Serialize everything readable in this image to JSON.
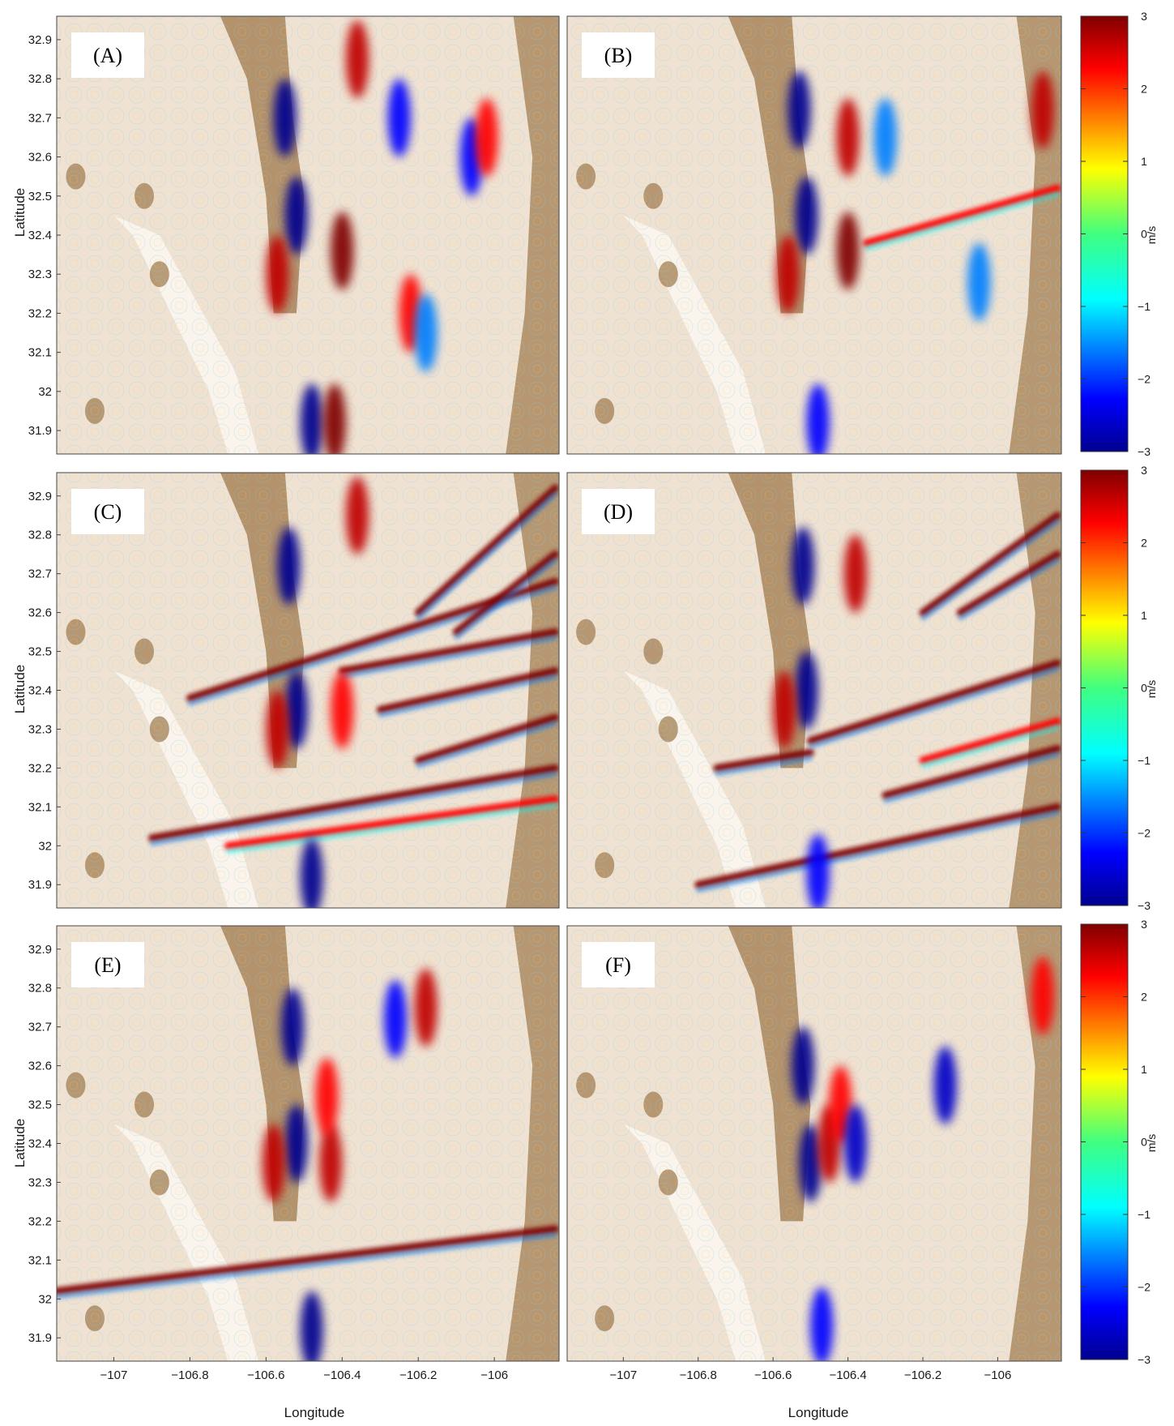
{
  "figure": {
    "xlabel": "Longitude",
    "ylabel": "Latitude",
    "colorbar": {
      "unit": "m/s",
      "min": -3,
      "max": 3,
      "ticks": [
        "3",
        "2",
        "1",
        "0",
        "−1",
        "−2",
        "−3"
      ]
    }
  },
  "chart_data": {
    "type": "heatmap",
    "xlim": [
      -107.15,
      -105.83
    ],
    "ylim": [
      31.84,
      32.96
    ],
    "x_ticks": [
      "−107",
      "−106.8",
      "−106.6",
      "−106.4",
      "−106.2",
      "−106"
    ],
    "x_tick_values": [
      -107,
      -106.8,
      -106.6,
      -106.4,
      -106.2,
      -106
    ],
    "y_ticks": [
      "32.9",
      "32.8",
      "32.7",
      "32.6",
      "32.5",
      "32.4",
      "32.3",
      "32.2",
      "32.1",
      "32",
      "31.9"
    ],
    "y_tick_values": [
      32.9,
      32.8,
      32.7,
      32.6,
      32.5,
      32.4,
      32.3,
      32.2,
      32.1,
      32.0,
      31.9
    ],
    "colormap": [
      "#00008f",
      "#0000ff",
      "#00ffff",
      "#ffff00",
      "#ff0000",
      "#800000"
    ],
    "terrain_colors": {
      "background": "#f0e2d2",
      "ridge": "#a8845a",
      "basin": "#fbf6ee"
    },
    "panels": [
      {
        "label": "(A)",
        "anomalies": [
          {
            "lon": -106.55,
            "lat": 32.7,
            "v": -3
          },
          {
            "lon": -106.52,
            "lat": 32.45,
            "v": -3
          },
          {
            "lon": -106.57,
            "lat": 32.3,
            "v": 2.5
          },
          {
            "lon": -106.4,
            "lat": 32.36,
            "v": 3
          },
          {
            "lon": -106.36,
            "lat": 32.85,
            "v": 2.5
          },
          {
            "lon": -106.25,
            "lat": 32.7,
            "v": -2
          },
          {
            "lon": -106.22,
            "lat": 32.2,
            "v": 2
          },
          {
            "lon": -106.18,
            "lat": 32.15,
            "v": -1.5
          },
          {
            "lon": -106.06,
            "lat": 32.6,
            "v": -2
          },
          {
            "lon": -106.02,
            "lat": 32.65,
            "v": 2
          },
          {
            "lon": -106.48,
            "lat": 31.92,
            "v": -3
          },
          {
            "lon": -106.42,
            "lat": 31.92,
            "v": 3
          }
        ],
        "bands": []
      },
      {
        "label": "(B)",
        "anomalies": [
          {
            "lon": -106.53,
            "lat": 32.72,
            "v": -3
          },
          {
            "lon": -106.51,
            "lat": 32.45,
            "v": -3
          },
          {
            "lon": -106.56,
            "lat": 32.3,
            "v": 2.5
          },
          {
            "lon": -106.4,
            "lat": 32.36,
            "v": 3
          },
          {
            "lon": -106.4,
            "lat": 32.65,
            "v": 2.5
          },
          {
            "lon": -106.3,
            "lat": 32.65,
            "v": -1.5
          },
          {
            "lon": -106.05,
            "lat": 32.28,
            "v": -1.5
          },
          {
            "lon": -105.88,
            "lat": 32.72,
            "v": 2.5
          },
          {
            "lon": -106.48,
            "lat": 31.92,
            "v": -2
          }
        ],
        "bands": [
          {
            "lon1": -106.35,
            "lat1": 32.38,
            "lon2": -105.84,
            "lat2": 32.52,
            "v": 2
          }
        ]
      },
      {
        "label": "(C)",
        "anomalies": [
          {
            "lon": -106.54,
            "lat": 32.72,
            "v": -3
          },
          {
            "lon": -106.52,
            "lat": 32.35,
            "v": -3
          },
          {
            "lon": -106.57,
            "lat": 32.3,
            "v": 2.5
          },
          {
            "lon": -106.4,
            "lat": 32.35,
            "v": 2
          },
          {
            "lon": -106.36,
            "lat": 32.85,
            "v": 2.5
          },
          {
            "lon": -106.48,
            "lat": 31.92,
            "v": -3
          }
        ],
        "bands": [
          {
            "lon1": -106.8,
            "lat1": 32.38,
            "lon2": -105.84,
            "lat2": 32.68,
            "v": 3
          },
          {
            "lon1": -106.4,
            "lat1": 32.45,
            "lon2": -105.84,
            "lat2": 32.55,
            "v": 3
          },
          {
            "lon1": -106.3,
            "lat1": 32.35,
            "lon2": -105.84,
            "lat2": 32.45,
            "v": 3
          },
          {
            "lon1": -106.2,
            "lat1": 32.6,
            "lon2": -105.84,
            "lat2": 32.92,
            "v": 3
          },
          {
            "lon1": -106.1,
            "lat1": 32.55,
            "lon2": -105.84,
            "lat2": 32.75,
            "v": 3
          },
          {
            "lon1": -106.2,
            "lat1": 32.22,
            "lon2": -105.84,
            "lat2": 32.33,
            "v": 3
          },
          {
            "lon1": -106.9,
            "lat1": 32.02,
            "lon2": -105.84,
            "lat2": 32.2,
            "v": 3
          },
          {
            "lon1": -106.7,
            "lat1": 32.0,
            "lon2": -105.84,
            "lat2": 32.12,
            "v": 2
          }
        ]
      },
      {
        "label": "(D)",
        "anomalies": [
          {
            "lon": -106.52,
            "lat": 32.72,
            "v": -3
          },
          {
            "lon": -106.51,
            "lat": 32.4,
            "v": -3
          },
          {
            "lon": -106.57,
            "lat": 32.35,
            "v": 2.5
          },
          {
            "lon": -106.38,
            "lat": 32.7,
            "v": 2.5
          },
          {
            "lon": -106.48,
            "lat": 31.93,
            "v": -2
          }
        ],
        "bands": [
          {
            "lon1": -106.75,
            "lat1": 32.2,
            "lon2": -106.5,
            "lat2": 32.24,
            "v": 3
          },
          {
            "lon1": -106.5,
            "lat1": 32.27,
            "lon2": -105.84,
            "lat2": 32.47,
            "v": 3
          },
          {
            "lon1": -106.3,
            "lat1": 32.13,
            "lon2": -105.84,
            "lat2": 32.25,
            "v": 3
          },
          {
            "lon1": -106.2,
            "lat1": 32.22,
            "lon2": -105.84,
            "lat2": 32.32,
            "v": 2
          },
          {
            "lon1": -106.2,
            "lat1": 32.6,
            "lon2": -105.84,
            "lat2": 32.85,
            "v": 3
          },
          {
            "lon1": -106.1,
            "lat1": 32.6,
            "lon2": -105.84,
            "lat2": 32.75,
            "v": 3
          },
          {
            "lon1": -106.8,
            "lat1": 31.9,
            "lon2": -105.84,
            "lat2": 32.1,
            "v": 3
          }
        ]
      },
      {
        "label": "(E)",
        "anomalies": [
          {
            "lon": -106.53,
            "lat": 32.7,
            "v": -3
          },
          {
            "lon": -106.52,
            "lat": 32.4,
            "v": -3
          },
          {
            "lon": -106.58,
            "lat": 32.35,
            "v": 2.5
          },
          {
            "lon": -106.43,
            "lat": 32.35,
            "v": 2.5
          },
          {
            "lon": -106.44,
            "lat": 32.52,
            "v": 2
          },
          {
            "lon": -106.26,
            "lat": 32.72,
            "v": -2
          },
          {
            "lon": -106.18,
            "lat": 32.75,
            "v": 2.5
          },
          {
            "lon": -106.48,
            "lat": 31.92,
            "v": -3
          }
        ],
        "bands": [
          {
            "lon1": -107.15,
            "lat1": 32.02,
            "lon2": -105.84,
            "lat2": 32.18,
            "v": 3
          }
        ]
      },
      {
        "label": "(F)",
        "anomalies": [
          {
            "lon": -106.52,
            "lat": 32.6,
            "v": -3
          },
          {
            "lon": -106.5,
            "lat": 32.35,
            "v": -3
          },
          {
            "lon": -106.45,
            "lat": 32.4,
            "v": 2.5
          },
          {
            "lon": -106.42,
            "lat": 32.5,
            "v": 2
          },
          {
            "lon": -106.38,
            "lat": 32.4,
            "v": -2.5
          },
          {
            "lon": -106.14,
            "lat": 32.55,
            "v": -2.5
          },
          {
            "lon": -105.88,
            "lat": 32.78,
            "v": 2
          },
          {
            "lon": -106.47,
            "lat": 31.93,
            "v": -2
          }
        ],
        "bands": []
      }
    ]
  }
}
